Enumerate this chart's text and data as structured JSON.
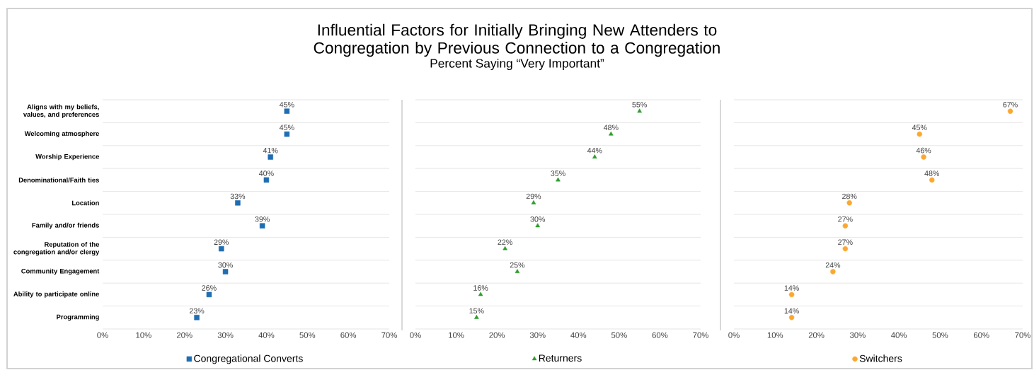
{
  "chart_data": [
    {
      "type": "scatter",
      "orientation": "horizontal",
      "categories": [
        "Aligns with my beliefs, values, and preferences",
        "Welcoming atmosphere",
        "Worship Experience",
        "Denominational/Faith ties",
        "Location",
        "Family and/or friends",
        "Reputation of the congregation and/or clergy",
        "Community Engagement",
        "Ability to participate online",
        "Programming"
      ],
      "series": [
        {
          "name": "Congregational Converts",
          "color": "#1f6db3",
          "values": [
            45,
            45,
            41,
            40,
            33,
            39,
            29,
            30,
            26,
            23
          ],
          "value_labels": [
            "45%",
            "45%",
            "41%",
            "40%",
            "33%",
            "39%",
            "29%",
            "30%",
            "26%",
            "23%"
          ]
        }
      ],
      "marker": "square",
      "xlim": [
        0,
        70
      ],
      "xticks": [
        {
          "value": 0,
          "label": "0%"
        },
        {
          "value": 10,
          "label": "10%"
        },
        {
          "value": 20,
          "label": "20%"
        },
        {
          "value": 30,
          "label": "30%"
        },
        {
          "value": 40,
          "label": "40%"
        },
        {
          "value": 50,
          "label": "50%"
        },
        {
          "value": 60,
          "label": "60%"
        },
        {
          "value": 70,
          "label": "70%"
        }
      ],
      "grid": "y",
      "legend": "bottom"
    },
    {
      "type": "scatter",
      "title": "Influential Factors for Initially Bringing New Attenders to Congregation by Previous Connection to a Congregation",
      "subtitle": "Percent Saying “Very Important”",
      "orientation": "horizontal",
      "categories": [
        null,
        null,
        null,
        null,
        null,
        null,
        null,
        null,
        null,
        null
      ],
      "series": [
        {
          "name": "Returners",
          "color": "#2e9e2e",
          "values": [
            55,
            48,
            44,
            35,
            29,
            30,
            22,
            25,
            16,
            15
          ],
          "value_labels": [
            "55%",
            "48%",
            "44%",
            "35%",
            "29%",
            "30%",
            "22%",
            "25%",
            "16%",
            "15%"
          ]
        }
      ],
      "marker": "triangle",
      "xlim": [
        0,
        70
      ],
      "xticks": [
        {
          "value": 0,
          "label": "0%"
        },
        {
          "value": 10,
          "label": "10%"
        },
        {
          "value": 20,
          "label": "20%"
        },
        {
          "value": 30,
          "label": "30%"
        },
        {
          "value": 40,
          "label": "40%"
        },
        {
          "value": 50,
          "label": "50%"
        },
        {
          "value": 60,
          "label": "60%"
        },
        {
          "value": 70,
          "label": "70%"
        }
      ],
      "grid": "y",
      "legend": "bottom"
    },
    {
      "type": "scatter",
      "orientation": "horizontal",
      "categories": [
        null,
        null,
        null,
        null,
        null,
        null,
        null,
        null,
        null,
        null
      ],
      "series": [
        {
          "name": "Switchers",
          "color": "#fba832",
          "values": [
            67,
            45,
            46,
            48,
            28,
            27,
            27,
            24,
            14,
            14
          ],
          "value_labels": [
            "67%",
            "45%",
            "46%",
            "48%",
            "28%",
            "27%",
            "27%",
            "24%",
            "14%",
            "14%"
          ]
        }
      ],
      "marker": "circle",
      "xlim": [
        0,
        70
      ],
      "xticks": [
        {
          "value": 0,
          "label": "0%"
        },
        {
          "value": 10,
          "label": "10%"
        },
        {
          "value": 20,
          "label": "20%"
        },
        {
          "value": 30,
          "label": "30%"
        },
        {
          "value": 40,
          "label": "40%"
        },
        {
          "value": 50,
          "label": "50%"
        },
        {
          "value": 60,
          "label": "60%"
        },
        {
          "value": 70,
          "label": "70%"
        }
      ],
      "grid": "y",
      "legend": "bottom"
    }
  ]
}
